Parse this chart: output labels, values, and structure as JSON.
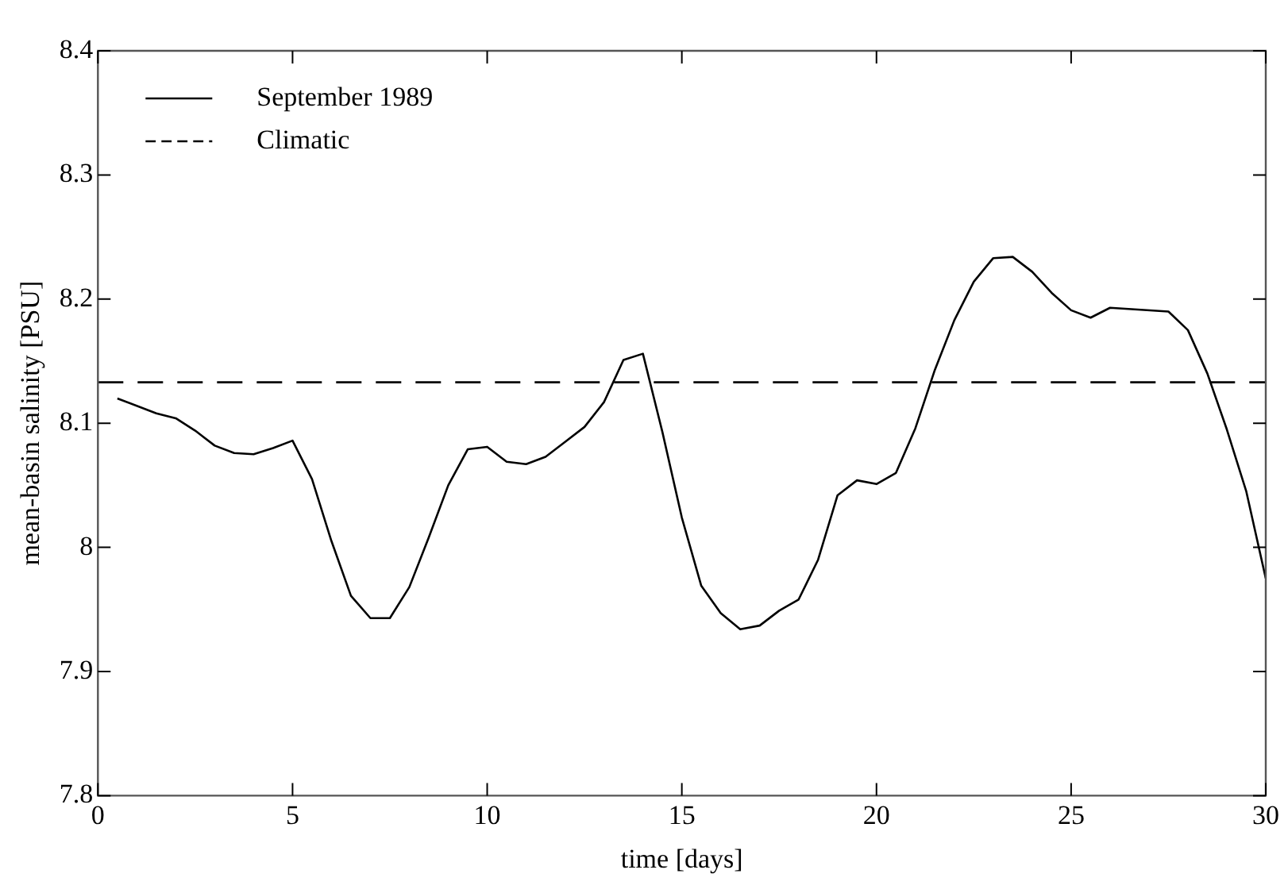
{
  "chart_data": {
    "type": "line",
    "xlabel": "time [days]",
    "ylabel": "mean-basin salinity [PSU]",
    "xlim": [
      0,
      30
    ],
    "xticks": [
      0,
      5,
      10,
      15,
      20,
      25,
      30
    ],
    "ylim": [
      7.8,
      8.4
    ],
    "yticks": [
      7.8,
      7.9,
      8,
      8.1,
      8.2,
      8.3,
      8.4
    ],
    "grid": false,
    "legend": "top left",
    "marker": "none",
    "series": [
      {
        "name": "September 1989",
        "color": "#000000",
        "line_style": "solid",
        "x": [
          0.5,
          1.5,
          2,
          2.5,
          3,
          3.5,
          4,
          4.5,
          5,
          5.5,
          6,
          6.5,
          7,
          7.5,
          8,
          8.5,
          9,
          9.5,
          10,
          10.5,
          11,
          11.5,
          12,
          12.5,
          13,
          13.5,
          14,
          14.5,
          15,
          15.5,
          16,
          16.5,
          17,
          17.5,
          18,
          18.5,
          19,
          19.5,
          20,
          20.5,
          21,
          21.5,
          22,
          22.5,
          23,
          23.5,
          24,
          24.5,
          25,
          25.5,
          26,
          27.5,
          28,
          28.5,
          29,
          29.5,
          30
        ],
        "values": [
          8.12,
          8.108,
          8.104,
          8.094,
          8.082,
          8.076,
          8.075,
          8.08,
          8.086,
          8.055,
          8.005,
          7.961,
          7.943,
          7.943,
          7.968,
          8.008,
          8.05,
          8.079,
          8.081,
          8.069,
          8.067,
          8.073,
          8.085,
          8.097,
          8.117,
          8.151,
          8.156,
          8.093,
          8.024,
          7.969,
          7.947,
          7.934,
          7.937,
          7.949,
          7.958,
          7.99,
          8.042,
          8.054,
          8.051,
          8.06,
          8.096,
          8.143,
          8.183,
          8.214,
          8.233,
          8.234,
          8.222,
          8.205,
          8.191,
          8.185,
          8.193,
          8.19,
          8.175,
          8.14,
          8.095,
          8.045,
          7.975
        ]
      },
      {
        "name": "Climatic",
        "color": "#000000",
        "line_style": "dashed",
        "x": [
          0,
          30
        ],
        "values": [
          8.133,
          8.133
        ]
      }
    ]
  }
}
